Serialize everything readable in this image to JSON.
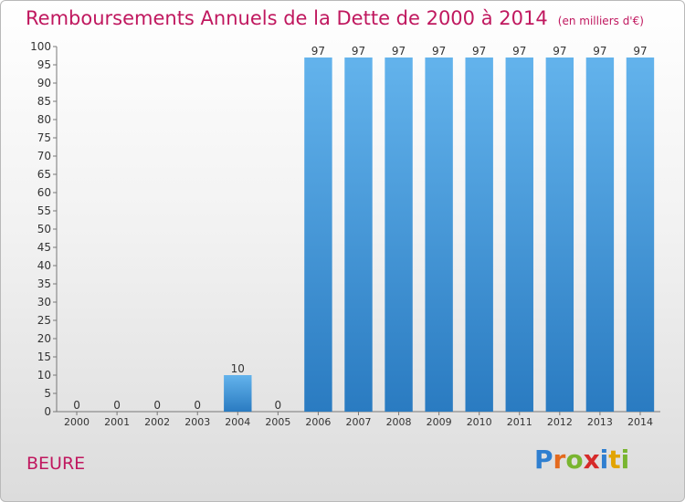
{
  "title": "Remboursements Annuels de la Dette de 2000 à 2014",
  "unit": "(en milliers d'€)",
  "place": "BEURE",
  "logo": {
    "letters": [
      "P",
      "r",
      "o",
      "x",
      "i",
      "t",
      "i"
    ],
    "colors": [
      "#2f7fd0",
      "#e46a1e",
      "#79b530",
      "#d62a2a",
      "#2f7fd0",
      "#e2a400",
      "#79b530"
    ]
  },
  "colors": {
    "accent": "#c0185f",
    "bar_top": "#63b3ec",
    "bar_bottom": "#2a7bc1"
  },
  "chart_data": {
    "type": "bar",
    "title": "Remboursements Annuels de la Dette de 2000 à 2014",
    "categories": [
      "2000",
      "2001",
      "2002",
      "2003",
      "2004",
      "2005",
      "2006",
      "2007",
      "2008",
      "2009",
      "2010",
      "2011",
      "2012",
      "2013",
      "2014"
    ],
    "values": [
      0,
      0,
      0,
      0,
      10,
      0,
      97,
      97,
      97,
      97,
      97,
      97,
      97,
      97,
      97
    ],
    "labels": [
      "0",
      "0",
      "0",
      "0",
      "10",
      "0",
      "97",
      "97",
      "97",
      "97",
      "97",
      "97",
      "97",
      "97",
      "97"
    ],
    "ylim": [
      0,
      100
    ],
    "yticks": [
      0,
      5,
      10,
      15,
      20,
      25,
      30,
      35,
      40,
      45,
      50,
      55,
      60,
      65,
      70,
      75,
      80,
      85,
      90,
      95,
      100
    ],
    "grid": false,
    "legend": "none"
  }
}
